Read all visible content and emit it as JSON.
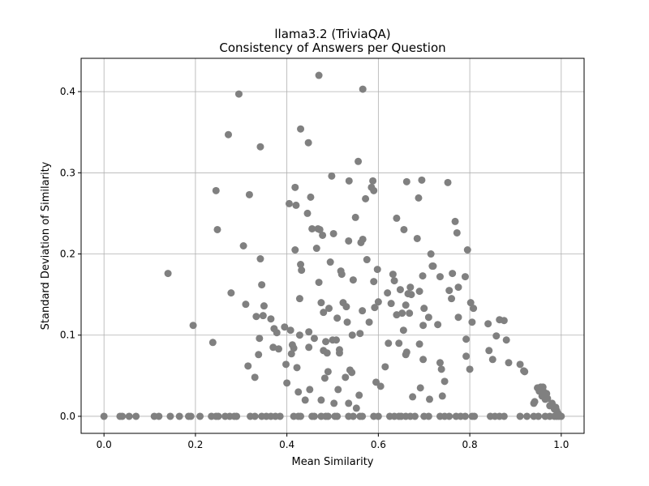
{
  "chart_data": {
    "type": "scatter",
    "title": "llama3.2 (TriviaQA)",
    "subtitle": "Consistency of Answers per Question",
    "xlabel": "Mean Similarity",
    "ylabel": "Standard Deviation of Similarity",
    "xlim": [
      -0.05,
      1.05
    ],
    "ylim": [
      -0.021,
      0.441
    ],
    "x_ticks": [
      0.0,
      0.2,
      0.4,
      0.6,
      0.8,
      1.0
    ],
    "x_tick_labels": [
      "0.0",
      "0.2",
      "0.4",
      "0.6",
      "0.8",
      "1.0"
    ],
    "y_ticks": [
      0.0,
      0.1,
      0.2,
      0.3,
      0.4
    ],
    "y_tick_labels": [
      "0.0",
      "0.1",
      "0.2",
      "0.3",
      "0.4"
    ],
    "grid": true,
    "legend": false,
    "point_color": "#808080",
    "points": [
      [
        0.0,
        0.0
      ],
      [
        0.035,
        0.0
      ],
      [
        0.04,
        0.0
      ],
      [
        0.055,
        0.0
      ],
      [
        0.07,
        0.0
      ],
      [
        0.11,
        0.0
      ],
      [
        0.12,
        0.0
      ],
      [
        0.145,
        0.0
      ],
      [
        0.165,
        0.0
      ],
      [
        0.185,
        0.0
      ],
      [
        0.19,
        0.0
      ],
      [
        0.21,
        0.0
      ],
      [
        0.235,
        0.0
      ],
      [
        0.245,
        0.0
      ],
      [
        0.25,
        0.0
      ],
      [
        0.265,
        0.0
      ],
      [
        0.275,
        0.0
      ],
      [
        0.285,
        0.0
      ],
      [
        0.29,
        0.0
      ],
      [
        0.32,
        0.0
      ],
      [
        0.33,
        0.0
      ],
      [
        0.345,
        0.0
      ],
      [
        0.355,
        0.0
      ],
      [
        0.365,
        0.0
      ],
      [
        0.375,
        0.0
      ],
      [
        0.385,
        0.0
      ],
      [
        0.415,
        0.0
      ],
      [
        0.425,
        0.0
      ],
      [
        0.43,
        0.0
      ],
      [
        0.455,
        0.0
      ],
      [
        0.46,
        0.0
      ],
      [
        0.475,
        0.0
      ],
      [
        0.485,
        0.0
      ],
      [
        0.49,
        0.0
      ],
      [
        0.505,
        0.0
      ],
      [
        0.51,
        0.0
      ],
      [
        0.535,
        0.0
      ],
      [
        0.545,
        0.0
      ],
      [
        0.56,
        0.0
      ],
      [
        0.565,
        0.0
      ],
      [
        0.59,
        0.0
      ],
      [
        0.6,
        0.0
      ],
      [
        0.625,
        0.0
      ],
      [
        0.635,
        0.0
      ],
      [
        0.645,
        0.0
      ],
      [
        0.65,
        0.0
      ],
      [
        0.66,
        0.0
      ],
      [
        0.67,
        0.0
      ],
      [
        0.68,
        0.0
      ],
      [
        0.7,
        0.0
      ],
      [
        0.71,
        0.0
      ],
      [
        0.735,
        0.0
      ],
      [
        0.745,
        0.0
      ],
      [
        0.755,
        0.0
      ],
      [
        0.77,
        0.0
      ],
      [
        0.78,
        0.0
      ],
      [
        0.79,
        0.0
      ],
      [
        0.805,
        0.0
      ],
      [
        0.81,
        0.0
      ],
      [
        0.845,
        0.0
      ],
      [
        0.855,
        0.0
      ],
      [
        0.865,
        0.0
      ],
      [
        0.875,
        0.0
      ],
      [
        0.91,
        0.0
      ],
      [
        0.925,
        0.0
      ],
      [
        0.94,
        0.0
      ],
      [
        0.95,
        0.0
      ],
      [
        0.965,
        0.0
      ],
      [
        0.975,
        0.0
      ],
      [
        0.985,
        0.0
      ],
      [
        0.99,
        0.0
      ],
      [
        0.995,
        0.0
      ],
      [
        1.0,
        0.0
      ],
      [
        0.14,
        0.176
      ],
      [
        0.195,
        0.112
      ],
      [
        0.238,
        0.091
      ],
      [
        0.245,
        0.278
      ],
      [
        0.248,
        0.23
      ],
      [
        0.272,
        0.347
      ],
      [
        0.278,
        0.152
      ],
      [
        0.295,
        0.397
      ],
      [
        0.305,
        0.21
      ],
      [
        0.31,
        0.138
      ],
      [
        0.315,
        0.062
      ],
      [
        0.318,
        0.273
      ],
      [
        0.33,
        0.048
      ],
      [
        0.333,
        0.123
      ],
      [
        0.338,
        0.076
      ],
      [
        0.34,
        0.096
      ],
      [
        0.342,
        0.332
      ],
      [
        0.342,
        0.194
      ],
      [
        0.345,
        0.162
      ],
      [
        0.348,
        0.124
      ],
      [
        0.35,
        0.136
      ],
      [
        0.365,
        0.12
      ],
      [
        0.37,
        0.085
      ],
      [
        0.372,
        0.108
      ],
      [
        0.378,
        0.103
      ],
      [
        0.382,
        0.083
      ],
      [
        0.395,
        0.11
      ],
      [
        0.398,
        0.064
      ],
      [
        0.4,
        0.041
      ],
      [
        0.405,
        0.262
      ],
      [
        0.408,
        0.106
      ],
      [
        0.41,
        0.077
      ],
      [
        0.412,
        0.088
      ],
      [
        0.415,
        0.084
      ],
      [
        0.418,
        0.282
      ],
      [
        0.418,
        0.205
      ],
      [
        0.42,
        0.26
      ],
      [
        0.422,
        0.06
      ],
      [
        0.425,
        0.03
      ],
      [
        0.428,
        0.1
      ],
      [
        0.428,
        0.145
      ],
      [
        0.43,
        0.354
      ],
      [
        0.43,
        0.187
      ],
      [
        0.432,
        0.18
      ],
      [
        0.44,
        0.02
      ],
      [
        0.445,
        0.25
      ],
      [
        0.447,
        0.337
      ],
      [
        0.448,
        0.104
      ],
      [
        0.448,
        0.085
      ],
      [
        0.45,
        0.033
      ],
      [
        0.452,
        0.27
      ],
      [
        0.455,
        0.231
      ],
      [
        0.46,
        0.096
      ],
      [
        0.465,
        0.207
      ],
      [
        0.468,
        0.231
      ],
      [
        0.47,
        0.42
      ],
      [
        0.47,
        0.165
      ],
      [
        0.472,
        0.23
      ],
      [
        0.475,
        0.14
      ],
      [
        0.475,
        0.02
      ],
      [
        0.478,
        0.223
      ],
      [
        0.48,
        0.128
      ],
      [
        0.48,
        0.081
      ],
      [
        0.483,
        0.047
      ],
      [
        0.485,
        0.092
      ],
      [
        0.488,
        0.078
      ],
      [
        0.49,
        0.055
      ],
      [
        0.492,
        0.133
      ],
      [
        0.495,
        0.19
      ],
      [
        0.498,
        0.296
      ],
      [
        0.5,
        0.094
      ],
      [
        0.502,
        0.225
      ],
      [
        0.503,
        0.016
      ],
      [
        0.508,
        0.094
      ],
      [
        0.51,
        0.121
      ],
      [
        0.512,
        0.033
      ],
      [
        0.515,
        0.082
      ],
      [
        0.515,
        0.078
      ],
      [
        0.518,
        0.179
      ],
      [
        0.52,
        0.175
      ],
      [
        0.523,
        0.14
      ],
      [
        0.528,
        0.048
      ],
      [
        0.53,
        0.135
      ],
      [
        0.532,
        0.116
      ],
      [
        0.535,
        0.016
      ],
      [
        0.535,
        0.216
      ],
      [
        0.536,
        0.29
      ],
      [
        0.538,
        0.057
      ],
      [
        0.542,
        0.054
      ],
      [
        0.543,
        0.1
      ],
      [
        0.545,
        0.168
      ],
      [
        0.55,
        0.245
      ],
      [
        0.552,
        0.01
      ],
      [
        0.556,
        0.314
      ],
      [
        0.558,
        0.026
      ],
      [
        0.56,
        0.102
      ],
      [
        0.562,
        0.214
      ],
      [
        0.565,
        0.13
      ],
      [
        0.566,
        0.218
      ],
      [
        0.566,
        0.403
      ],
      [
        0.572,
        0.268
      ],
      [
        0.575,
        0.193
      ],
      [
        0.58,
        0.116
      ],
      [
        0.585,
        0.282
      ],
      [
        0.588,
        0.29
      ],
      [
        0.59,
        0.278
      ],
      [
        0.59,
        0.166
      ],
      [
        0.592,
        0.134
      ],
      [
        0.595,
        0.042
      ],
      [
        0.598,
        0.181
      ],
      [
        0.6,
        0.141
      ],
      [
        0.605,
        0.037
      ],
      [
        0.615,
        0.061
      ],
      [
        0.62,
        0.152
      ],
      [
        0.622,
        0.09
      ],
      [
        0.628,
        0.139
      ],
      [
        0.632,
        0.175
      ],
      [
        0.635,
        0.167
      ],
      [
        0.64,
        0.244
      ],
      [
        0.64,
        0.125
      ],
      [
        0.645,
        0.09
      ],
      [
        0.648,
        0.156
      ],
      [
        0.652,
        0.127
      ],
      [
        0.655,
        0.106
      ],
      [
        0.656,
        0.23
      ],
      [
        0.66,
        0.076
      ],
      [
        0.66,
        0.137
      ],
      [
        0.662,
        0.289
      ],
      [
        0.662,
        0.079
      ],
      [
        0.665,
        0.151
      ],
      [
        0.668,
        0.127
      ],
      [
        0.67,
        0.159
      ],
      [
        0.672,
        0.15
      ],
      [
        0.675,
        0.024
      ],
      [
        0.685,
        0.219
      ],
      [
        0.688,
        0.269
      ],
      [
        0.69,
        0.154
      ],
      [
        0.69,
        0.089
      ],
      [
        0.692,
        0.035
      ],
      [
        0.695,
        0.291
      ],
      [
        0.697,
        0.173
      ],
      [
        0.698,
        0.07
      ],
      [
        0.698,
        0.112
      ],
      [
        0.7,
        0.133
      ],
      [
        0.71,
        0.122
      ],
      [
        0.712,
        0.021
      ],
      [
        0.715,
        0.2
      ],
      [
        0.718,
        0.185
      ],
      [
        0.72,
        0.185
      ],
      [
        0.73,
        0.113
      ],
      [
        0.735,
        0.172
      ],
      [
        0.735,
        0.066
      ],
      [
        0.738,
        0.058
      ],
      [
        0.74,
        0.025
      ],
      [
        0.745,
        0.043
      ],
      [
        0.752,
        0.288
      ],
      [
        0.755,
        0.155
      ],
      [
        0.76,
        0.145
      ],
      [
        0.762,
        0.176
      ],
      [
        0.768,
        0.24
      ],
      [
        0.772,
        0.226
      ],
      [
        0.775,
        0.122
      ],
      [
        0.775,
        0.159
      ],
      [
        0.79,
        0.172
      ],
      [
        0.792,
        0.095
      ],
      [
        0.792,
        0.074
      ],
      [
        0.795,
        0.205
      ],
      [
        0.8,
        0.058
      ],
      [
        0.802,
        0.14
      ],
      [
        0.805,
        0.116
      ],
      [
        0.808,
        0.133
      ],
      [
        0.84,
        0.114
      ],
      [
        0.842,
        0.081
      ],
      [
        0.85,
        0.07
      ],
      [
        0.858,
        0.099
      ],
      [
        0.865,
        0.119
      ],
      [
        0.875,
        0.118
      ],
      [
        0.88,
        0.094
      ],
      [
        0.885,
        0.066
      ],
      [
        0.91,
        0.064
      ],
      [
        0.918,
        0.056
      ],
      [
        0.92,
        0.055
      ],
      [
        0.94,
        0.016
      ],
      [
        0.942,
        0.018
      ],
      [
        0.948,
        0.035
      ],
      [
        0.952,
        0.031
      ],
      [
        0.955,
        0.036
      ],
      [
        0.958,
        0.025
      ],
      [
        0.96,
        0.036
      ],
      [
        0.962,
        0.03
      ],
      [
        0.965,
        0.021
      ],
      [
        0.968,
        0.028
      ],
      [
        0.97,
        0.022
      ],
      [
        0.975,
        0.013
      ],
      [
        0.98,
        0.016
      ],
      [
        0.985,
        0.009
      ],
      [
        0.988,
        0.011
      ],
      [
        0.99,
        0.007
      ],
      [
        0.992,
        0.004
      ],
      [
        0.995,
        0.002
      ]
    ]
  }
}
